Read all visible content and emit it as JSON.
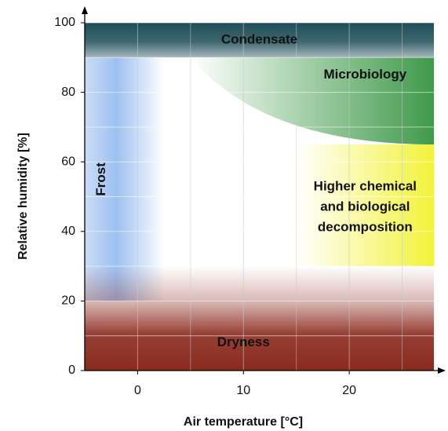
{
  "chart_data": {
    "type": "zones",
    "xlabel": "Air temperature [°C]",
    "ylabel": "Relative humidity [%]",
    "xlim": [
      -5,
      28
    ],
    "ylim": [
      0,
      100
    ],
    "xticks": [
      0,
      10,
      20
    ],
    "yticks": [
      0,
      20,
      40,
      60,
      80,
      100
    ],
    "xminor": [
      5,
      15,
      25
    ],
    "yminor": [
      10,
      30,
      50,
      70,
      90
    ],
    "grid": true,
    "zones": [
      {
        "label": [
          "Frost"
        ],
        "x": [
          -5,
          2.5
        ],
        "y": [
          20,
          90
        ],
        "color": "#9ec0f0",
        "fade": "right"
      },
      {
        "label": [
          "Dryness"
        ],
        "x": [
          -5,
          28
        ],
        "y": [
          0,
          30
        ],
        "color": "#8b2a1e",
        "fade": "up"
      },
      {
        "label": [
          "Higher chemical",
          "and biological",
          "decomposition"
        ],
        "x": [
          15,
          28
        ],
        "y": [
          30,
          65
        ],
        "color": "#f2f23a",
        "fade": "left"
      },
      {
        "label": [
          "Microbiology"
        ],
        "x": [
          5,
          28
        ],
        "y": [
          65,
          90
        ],
        "color": "#3f9a4a",
        "fade": "left"
      },
      {
        "label": [
          "Condensate"
        ],
        "x": [
          -5,
          28
        ],
        "y": [
          90,
          100
        ],
        "color": "#1e4d57",
        "fade": "down"
      }
    ]
  }
}
